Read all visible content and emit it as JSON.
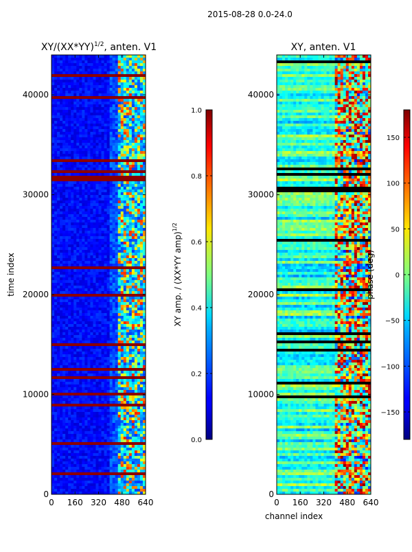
{
  "figure_title": "2015-08-28 0.0-24.0",
  "chart_data": [
    {
      "type": "heatmap",
      "title": "XY/(XX*YY)^(1/2), anten. V1",
      "title_parts": {
        "main": "XY/(XX*YY)",
        "sup": "1/2",
        "tail": ", anten. V1"
      },
      "xlabel": "",
      "ylabel": "time index",
      "xlim": [
        0,
        640
      ],
      "ylim": [
        0,
        44000
      ],
      "xticks": [
        "0",
        "160",
        "320",
        "480",
        "640"
      ],
      "yticks": [
        "0",
        "10000",
        "20000",
        "30000",
        "40000"
      ],
      "colorbar": {
        "label": "XY amp. / (XX*YY amp)^(1/2)",
        "label_parts": {
          "main": "XY amp. / (XX*YY amp)",
          "sup": "1/2"
        },
        "range": [
          0.0,
          1.0
        ],
        "ticks": [
          "0.0",
          "0.2",
          "0.4",
          "0.6",
          "0.8",
          "1.0"
        ],
        "colormap": "jet"
      }
    },
    {
      "type": "heatmap",
      "title": "XY, anten. V1",
      "xlabel": "channel index",
      "ylabel": "",
      "xlim": [
        0,
        640
      ],
      "ylim": [
        0,
        44000
      ],
      "xticks": [
        "0",
        "160",
        "320",
        "480",
        "640"
      ],
      "yticks": [
        "0",
        "10000",
        "20000",
        "30000",
        "40000"
      ],
      "colorbar": {
        "label": "phase (deg)",
        "range": [
          -180,
          180
        ],
        "ticks": [
          "−150",
          "−100",
          "−50",
          "0",
          "50",
          "100",
          "150"
        ],
        "colormap": "jet"
      }
    }
  ]
}
